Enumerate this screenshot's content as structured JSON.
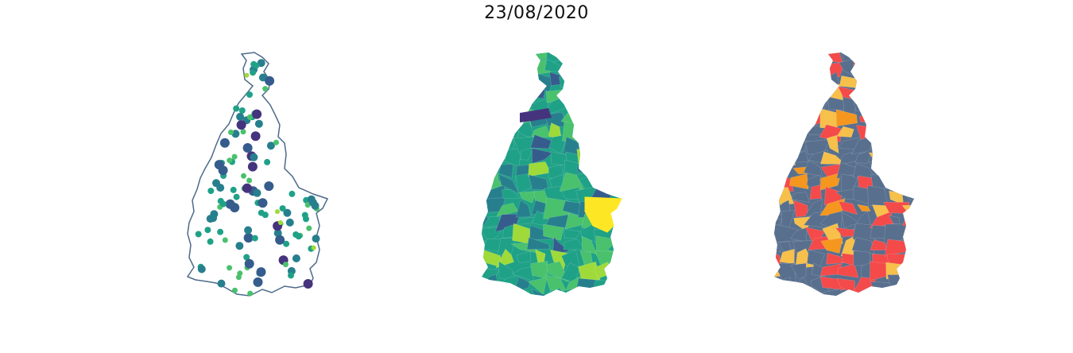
{
  "title": "23/08/2020",
  "colors": {
    "outline": "#4e6a8a",
    "viridis": [
      "#46337e",
      "#365c8d",
      "#277f8e",
      "#1fa187",
      "#4ac16d",
      "#9fda3a",
      "#fde725"
    ],
    "classes": [
      "#f44a4a",
      "#f7c04a",
      "#f5961e",
      "#58708e"
    ]
  }
}
